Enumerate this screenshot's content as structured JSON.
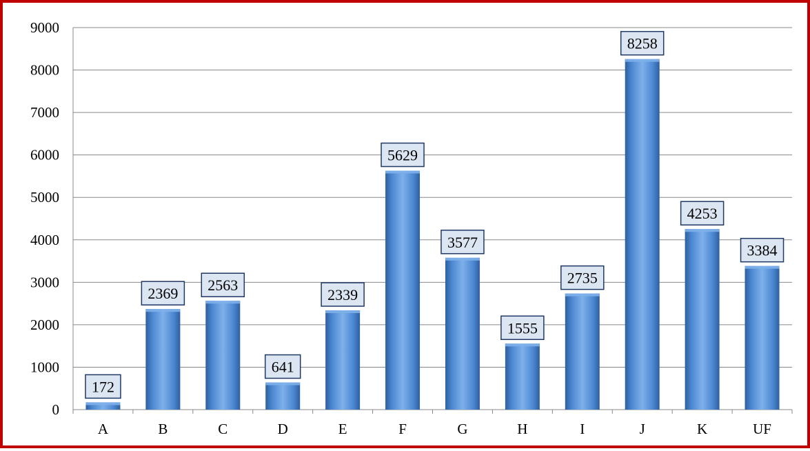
{
  "chart_data": {
    "type": "bar",
    "title": "",
    "xlabel": "",
    "ylabel": "",
    "categories": [
      "A",
      "B",
      "C",
      "D",
      "E",
      "F",
      "G",
      "H",
      "I",
      "J",
      "K",
      "UF"
    ],
    "values": [
      172,
      2369,
      2563,
      641,
      2339,
      5629,
      3577,
      1555,
      2735,
      8258,
      4253,
      3384
    ],
    "ylim": [
      0,
      9000
    ],
    "yticks": [
      0,
      1000,
      2000,
      3000,
      4000,
      5000,
      6000,
      7000,
      8000,
      9000
    ],
    "grid": true,
    "legend": "none",
    "data_labels": true
  },
  "colors": {
    "bar": "#4a86d0",
    "bar_dark": "#2e5f9e",
    "bar_light": "#7eb0ea",
    "frame_border": "#c00000",
    "label_box_fill": "#dce6f2",
    "label_box_border": "#1f3864",
    "gridline": "#888888"
  }
}
